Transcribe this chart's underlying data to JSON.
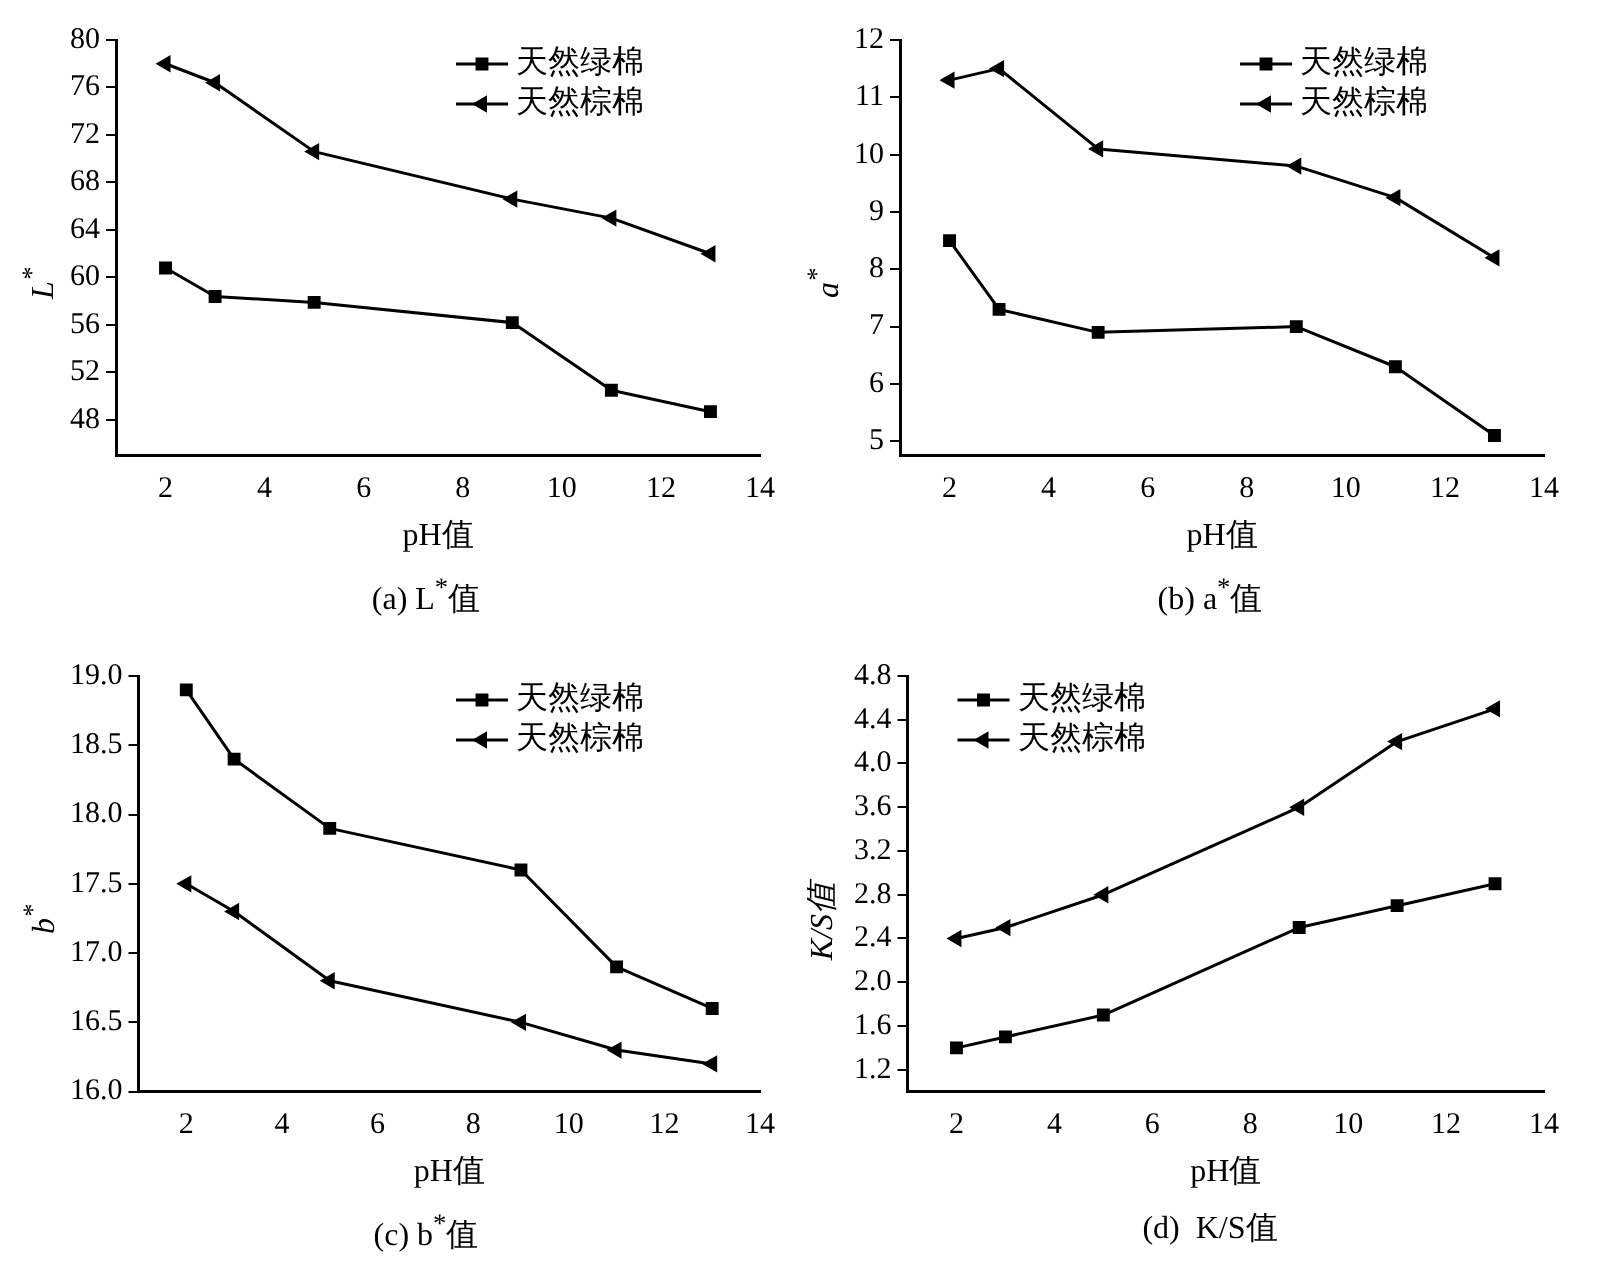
{
  "chart_data": [
    {
      "type": "line",
      "ylabel": "L$^{*}$",
      "xlabel": "pH值",
      "annotations": [
        "(a) L$^{*}$值"
      ],
      "x": [
        2,
        3,
        5,
        9,
        11,
        13
      ],
      "xlim": [
        1,
        14
      ],
      "xticks": [
        2,
        4,
        6,
        8,
        10,
        12,
        14
      ],
      "ylim": [
        45,
        80
      ],
      "yticks": [
        48,
        52,
        56,
        60,
        64,
        68,
        72,
        76,
        80
      ],
      "grid": false,
      "legend": "top right",
      "series": [
        {
          "name": "天然绿棉",
          "color": "#000000",
          "marker": "square",
          "values": [
            60.8,
            58.4,
            57.9,
            56.2,
            50.5,
            48.7
          ]
        },
        {
          "name": "天然棕棉",
          "color": "#000000",
          "marker": "triangle",
          "values": [
            78,
            76.4,
            70.6,
            66.6,
            65,
            62
          ]
        }
      ]
    },
    {
      "type": "line",
      "ylabel": "a$^{*}$",
      "xlabel": "pH值",
      "annotations": [
        "(b) a$^{*}$值"
      ],
      "x": [
        2,
        3,
        5,
        9,
        11,
        13
      ],
      "xlim": [
        1,
        14
      ],
      "xticks": [
        2,
        4,
        6,
        8,
        10,
        12,
        14
      ],
      "ylim": [
        4.75,
        12
      ],
      "yticks": [
        5,
        6,
        7,
        8,
        9,
        10,
        11,
        12
      ],
      "grid": false,
      "legend": "top right",
      "series": [
        {
          "name": "天然绿棉",
          "color": "#000000",
          "marker": "square",
          "values": [
            8.5,
            7.3,
            6.9,
            7.0,
            6.3,
            5.1
          ]
        },
        {
          "name": "天然棕棉",
          "color": "#000000",
          "marker": "triangle",
          "values": [
            11.3,
            11.5,
            10.1,
            9.8,
            9.25,
            8.2
          ]
        }
      ]
    },
    {
      "type": "line",
      "ylabel": "b$^{*}$",
      "xlabel": "pH值",
      "annotations": [
        "(c) b$^{*}$值"
      ],
      "x": [
        2,
        3,
        5,
        9,
        11,
        13
      ],
      "xlim": [
        1,
        14
      ],
      "xticks": [
        2,
        4,
        6,
        8,
        10,
        12,
        14
      ],
      "ylim": [
        16,
        19
      ],
      "yticks": [
        {
          "value": 16,
          "label": "16.0"
        },
        16.5,
        {
          "value": 17,
          "label": "17.0"
        },
        17.5,
        {
          "value": 18,
          "label": "18.0"
        },
        18.5,
        {
          "value": 19,
          "label": "19.0"
        }
      ],
      "grid": false,
      "legend": "top right",
      "series": [
        {
          "name": "天然绿棉",
          "color": "#000000",
          "marker": "square",
          "values": [
            18.9,
            18.4,
            17.9,
            17.6,
            16.9,
            16.6
          ]
        },
        {
          "name": "天然棕棉",
          "color": "#000000",
          "marker": "triangle",
          "values": [
            17.5,
            17.3,
            16.8,
            16.5,
            16.3,
            16.2
          ]
        }
      ]
    },
    {
      "type": "line",
      "ylabel": "K/S值",
      "xlabel": "pH值",
      "annotations": [
        "(d)  K/S值"
      ],
      "x": [
        2,
        3,
        5,
        9,
        11,
        13
      ],
      "xlim": [
        1,
        14
      ],
      "xticks": [
        2,
        4,
        6,
        8,
        10,
        12,
        14
      ],
      "ylim": [
        1,
        4.8
      ],
      "yticks": [
        1.2,
        1.6,
        {
          "value": 2,
          "label": "2.0"
        },
        2.4,
        2.8,
        3.2,
        3.6,
        {
          "value": 4,
          "label": "4.0"
        },
        4.4,
        4.8
      ],
      "grid": false,
      "legend": "top left",
      "series": [
        {
          "name": "天然绿棉",
          "color": "#000000",
          "marker": "square",
          "values": [
            1.4,
            1.5,
            1.7,
            2.5,
            2.7,
            2.9
          ]
        },
        {
          "name": "天然棕棉",
          "color": "#000000",
          "marker": "triangle",
          "values": [
            2.4,
            2.5,
            2.8,
            3.6,
            4.2,
            4.5
          ]
        }
      ]
    }
  ]
}
